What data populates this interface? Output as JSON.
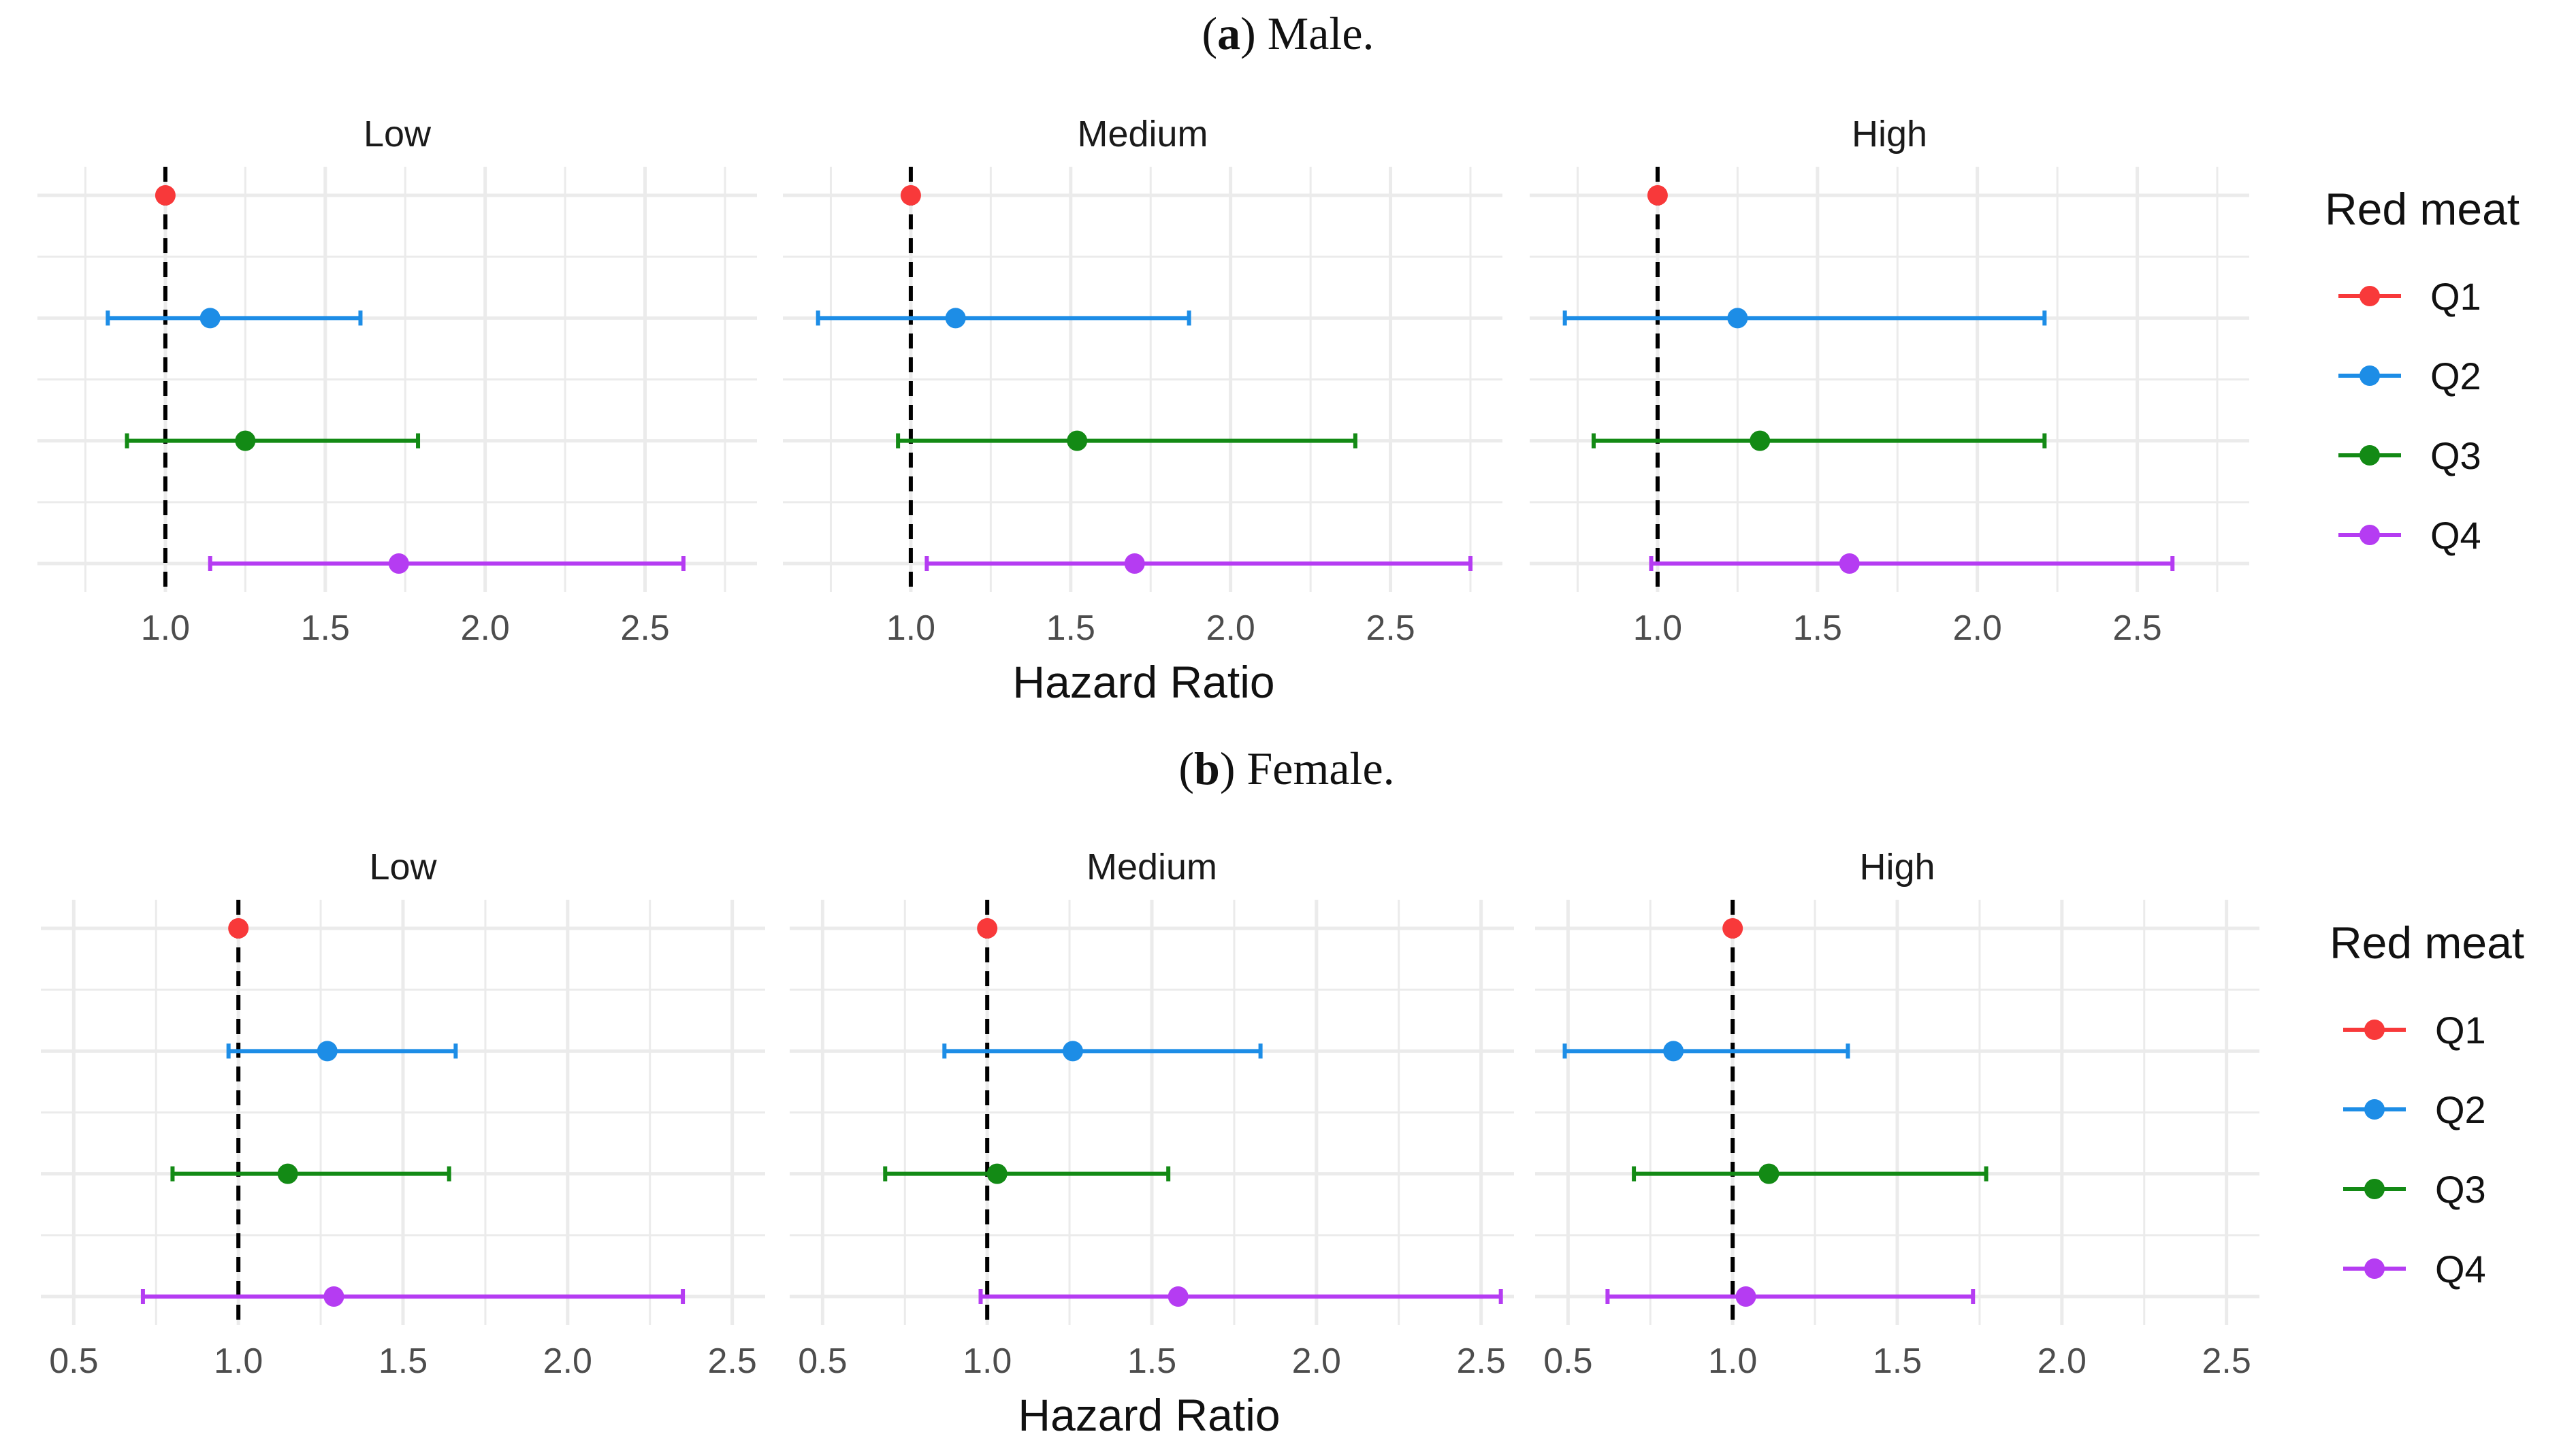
{
  "figure": {
    "caption_a_letter": "a",
    "caption_a_text": "Male.",
    "caption_b_letter": "b",
    "caption_b_text": "Female."
  },
  "colors": {
    "Q1": "#f8393a",
    "Q2": "#1d8de6",
    "Q3": "#138a15",
    "Q4": "#b53cf2",
    "reference_line": "#000000",
    "grid": "#ebebeb"
  },
  "chart_data": [
    {
      "type": "forest",
      "name": "male",
      "xlabel": "Hazard Ratio",
      "legend_title": "Red meat",
      "legend_labels": [
        "Q1",
        "Q2",
        "Q3",
        "Q4"
      ],
      "reference_value": 1.0,
      "xlim": [
        0.6,
        2.85
      ],
      "xticks": [
        1.0,
        1.5,
        2.0,
        2.5
      ],
      "xtick_labels": [
        "1.0",
        "1.5",
        "2.0",
        "2.5"
      ],
      "panels": [
        {
          "title": "Low",
          "series": [
            {
              "name": "Q1",
              "hr": 1.0,
              "lower": 1.0,
              "upper": 1.0
            },
            {
              "name": "Q2",
              "hr": 1.14,
              "lower": 0.82,
              "upper": 1.61
            },
            {
              "name": "Q3",
              "hr": 1.25,
              "lower": 0.88,
              "upper": 1.79
            },
            {
              "name": "Q4",
              "hr": 1.73,
              "lower": 1.14,
              "upper": 2.62
            }
          ]
        },
        {
          "title": "Medium",
          "series": [
            {
              "name": "Q1",
              "hr": 1.0,
              "lower": 1.0,
              "upper": 1.0
            },
            {
              "name": "Q2",
              "hr": 1.14,
              "lower": 0.71,
              "upper": 1.87
            },
            {
              "name": "Q3",
              "hr": 1.52,
              "lower": 0.96,
              "upper": 2.39
            },
            {
              "name": "Q4",
              "hr": 1.7,
              "lower": 1.05,
              "upper": 2.75
            }
          ]
        },
        {
          "title": "High",
          "series": [
            {
              "name": "Q1",
              "hr": 1.0,
              "lower": 1.0,
              "upper": 1.0
            },
            {
              "name": "Q2",
              "hr": 1.25,
              "lower": 0.71,
              "upper": 2.21
            },
            {
              "name": "Q3",
              "hr": 1.32,
              "lower": 0.8,
              "upper": 2.21
            },
            {
              "name": "Q4",
              "hr": 1.6,
              "lower": 0.98,
              "upper": 2.61
            }
          ]
        }
      ]
    },
    {
      "type": "forest",
      "name": "female",
      "xlabel": "Hazard Ratio",
      "legend_title": "Red meat",
      "legend_labels": [
        "Q1",
        "Q2",
        "Q3",
        "Q4"
      ],
      "reference_value": 1.0,
      "xlim": [
        0.4,
        2.6
      ],
      "xticks": [
        0.5,
        1.0,
        1.5,
        2.0,
        2.5
      ],
      "xtick_labels": [
        "0.5",
        "1.0",
        "1.5",
        "2.0",
        "2.5"
      ],
      "panels": [
        {
          "title": "Low",
          "series": [
            {
              "name": "Q1",
              "hr": 1.0,
              "lower": 1.0,
              "upper": 1.0
            },
            {
              "name": "Q2",
              "hr": 1.27,
              "lower": 0.97,
              "upper": 1.66
            },
            {
              "name": "Q3",
              "hr": 1.15,
              "lower": 0.8,
              "upper": 1.64
            },
            {
              "name": "Q4",
              "hr": 1.29,
              "lower": 0.71,
              "upper": 2.35
            }
          ]
        },
        {
          "title": "Medium",
          "series": [
            {
              "name": "Q1",
              "hr": 1.0,
              "lower": 1.0,
              "upper": 1.0
            },
            {
              "name": "Q2",
              "hr": 1.26,
              "lower": 0.87,
              "upper": 1.83
            },
            {
              "name": "Q3",
              "hr": 1.03,
              "lower": 0.69,
              "upper": 1.55
            },
            {
              "name": "Q4",
              "hr": 1.58,
              "lower": 0.98,
              "upper": 2.56
            }
          ]
        },
        {
          "title": "High",
          "series": [
            {
              "name": "Q1",
              "hr": 1.0,
              "lower": 1.0,
              "upper": 1.0
            },
            {
              "name": "Q2",
              "hr": 0.82,
              "lower": 0.49,
              "upper": 1.35
            },
            {
              "name": "Q3",
              "hr": 1.11,
              "lower": 0.7,
              "upper": 1.77
            },
            {
              "name": "Q4",
              "hr": 1.04,
              "lower": 0.62,
              "upper": 1.73
            }
          ]
        }
      ]
    }
  ]
}
